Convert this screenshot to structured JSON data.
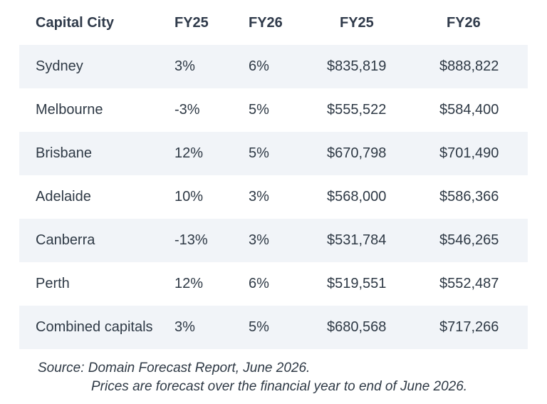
{
  "table": {
    "headers": {
      "city": "Capital City",
      "fy25_pct": "FY25",
      "fy26_pct": "FY26",
      "fy25_price": "FY25",
      "fy26_price": "FY26"
    },
    "rows": [
      {
        "city": "Sydney",
        "fy25_pct": "3%",
        "fy26_pct": "6%",
        "fy25_price": "$835,819",
        "fy26_price": "$888,822"
      },
      {
        "city": "Melbourne",
        "fy25_pct": "-3%",
        "fy26_pct": "5%",
        "fy25_price": "$555,522",
        "fy26_price": "$584,400"
      },
      {
        "city": "Brisbane",
        "fy25_pct": "12%",
        "fy26_pct": "5%",
        "fy25_price": "$670,798",
        "fy26_price": "$701,490"
      },
      {
        "city": "Adelaide",
        "fy25_pct": "10%",
        "fy26_pct": "3%",
        "fy25_price": "$568,000",
        "fy26_price": "$586,366"
      },
      {
        "city": "Canberra",
        "fy25_pct": "-13%",
        "fy26_pct": "3%",
        "fy25_price": "$531,784",
        "fy26_price": "$546,265"
      },
      {
        "city": "Perth",
        "fy25_pct": "12%",
        "fy26_pct": "6%",
        "fy25_price": "$519,551",
        "fy26_price": "$552,487"
      },
      {
        "city": "Combined capitals",
        "fy25_pct": "3%",
        "fy26_pct": "5%",
        "fy25_price": "$680,568",
        "fy26_price": "$717,266"
      }
    ]
  },
  "footnote": {
    "source": "Source: Domain Forecast Report, June 2026.",
    "note": "Prices are forecast over the financial year to end of June 2026."
  },
  "colors": {
    "row_shade": "#f1f4f8",
    "text": "#2e3945"
  }
}
